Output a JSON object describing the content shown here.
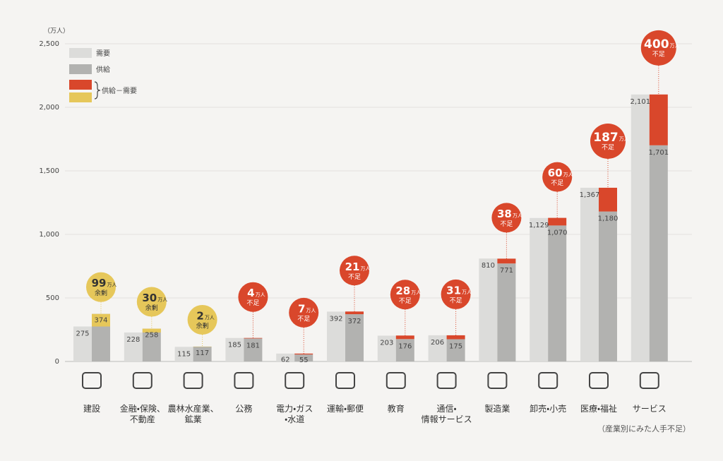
{
  "chart_data": {
    "type": "bar",
    "unit": "（万人）",
    "footnote": "（産業別にみた人手不足）",
    "categories": [
      "建設",
      "金融・保険、\n不動産",
      "農林水産業、\n鉱業",
      "公務",
      "電力・ガス\n・水道",
      "運輸・郵便",
      "教育",
      "通信・\n情報サービス",
      "製造業",
      "卸売・小売",
      "医療・福祉",
      "サービス"
    ],
    "series": [
      {
        "name": "需要",
        "color": "#dcdcda",
        "values": [
          275,
          228,
          115,
          185,
          62,
          392,
          203,
          206,
          810,
          1129,
          1367,
          2101
        ],
        "value_labels": [
          "275",
          "228",
          "115",
          "185",
          "62",
          "392",
          "203",
          "206",
          "810",
          "1,129",
          "1,367",
          "2,101"
        ]
      },
      {
        "name": "供給",
        "color": "#b2b2b0",
        "values": [
          374,
          258,
          117,
          181,
          55,
          372,
          176,
          175,
          771,
          1070,
          1180,
          1701
        ],
        "value_labels": [
          "374",
          "258",
          "117",
          "181",
          "55",
          "372",
          "176",
          "175",
          "771",
          "1,070",
          "1,180",
          "1,701"
        ]
      },
      {
        "name": "供給－需要",
        "surplus_color": "#e6c75a",
        "shortage_color": "#d9472b",
        "values": [
          99,
          30,
          2,
          -4,
          -7,
          -21,
          -28,
          -31,
          -38,
          -60,
          -187,
          -400
        ],
        "value_labels": [
          "99",
          "30",
          "2",
          "4",
          "7",
          "21",
          "28",
          "31",
          "38",
          "60",
          "187",
          "400"
        ],
        "unit": "万人",
        "status_labels": [
          "余剰",
          "余剰",
          "余剰",
          "不足",
          "不足",
          "不足",
          "不足",
          "不足",
          "不足",
          "不足",
          "不足",
          "不足"
        ]
      }
    ],
    "ylim": [
      0,
      2500
    ],
    "yticks": [
      0,
      500,
      {
        "value": 1000,
        "label": "1,000"
      },
      {
        "value": 1500,
        "label": "1,500"
      },
      {
        "value": 2000,
        "label": "2,000"
      },
      {
        "value": 2500,
        "label": "2,500"
      }
    ],
    "grid": true
  }
}
